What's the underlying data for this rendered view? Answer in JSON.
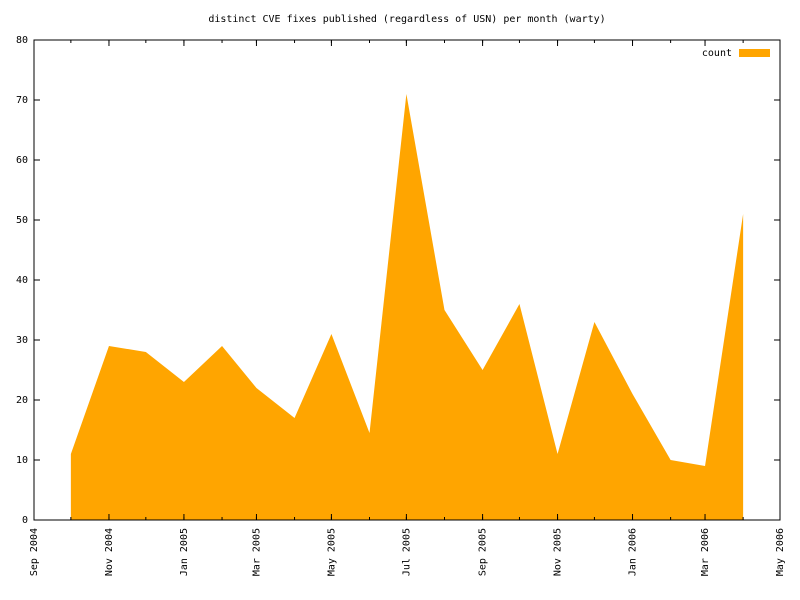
{
  "chart_data": {
    "type": "area",
    "title": "distinct CVE fixes published (regardless of USN) per month (warty)",
    "x": [
      "2004-10",
      "2004-11",
      "2004-12",
      "2005-01",
      "2005-02",
      "2005-03",
      "2005-04",
      "2005-05",
      "2005-06",
      "2005-07",
      "2005-08",
      "2005-09",
      "2005-10",
      "2005-11",
      "2005-12",
      "2006-01",
      "2006-02",
      "2006-03",
      "2006-04"
    ],
    "series": [
      {
        "name": "count",
        "color": "#ffa500",
        "values": [
          11,
          29,
          28,
          23,
          29,
          22,
          17,
          31,
          14.5,
          71,
          35,
          25,
          36,
          11,
          33,
          21,
          10,
          9,
          51
        ]
      }
    ],
    "xlim": [
      "2004-09",
      "2006-05"
    ],
    "xticks": [
      {
        "value": "2004-09",
        "label": "Sep 2004"
      },
      {
        "value": "2004-11",
        "label": "Nov 2004"
      },
      {
        "value": "2005-01",
        "label": "Jan 2005"
      },
      {
        "value": "2005-03",
        "label": "Mar 2005"
      },
      {
        "value": "2005-05",
        "label": "May 2005"
      },
      {
        "value": "2005-07",
        "label": "Jul 2005"
      },
      {
        "value": "2005-09",
        "label": "Sep 2005"
      },
      {
        "value": "2005-11",
        "label": "Nov 2005"
      },
      {
        "value": "2006-01",
        "label": "Jan 2006"
      },
      {
        "value": "2006-03",
        "label": "Mar 2006"
      },
      {
        "value": "2006-05",
        "label": "May 2006"
      }
    ],
    "ylim": [
      0,
      80
    ],
    "yticks": [
      0,
      10,
      20,
      30,
      40,
      50,
      60,
      70,
      80
    ],
    "legend": "top-right"
  }
}
